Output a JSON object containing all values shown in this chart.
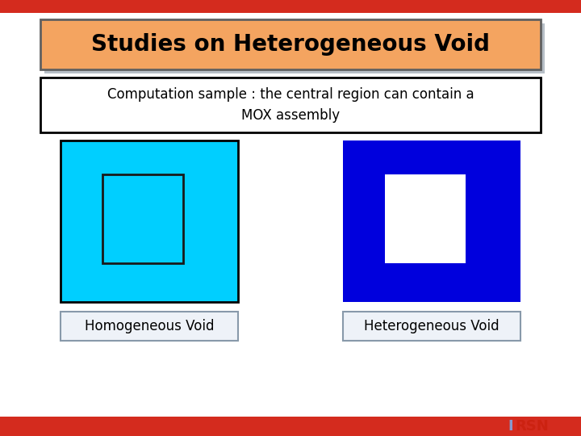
{
  "bg_color": "#ffffff",
  "red_bar_color": "#d42b1e",
  "title_text": "Studies on Heterogeneous Void",
  "title_box_color": "#f4a460",
  "title_shadow_color": "#708090",
  "subtitle_text": "Computation sample : the central region can contain a\nMOX assembly",
  "subtitle_box_edge": "#000000",
  "left_box_color": "#00cfff",
  "left_box_edge": "#000000",
  "left_inner_color": "#00cfff",
  "left_inner_edge": "#1a1a1a",
  "right_box_color": "#0000dd",
  "right_box_edge": "#0000dd",
  "right_inner_color": "#ffffff",
  "label_left": "Homogeneous Void",
  "label_right": "Heterogeneous Void",
  "label_box_edge": "#8899aa",
  "label_box_face": "#eef2f8",
  "irsn_I_color": "#8899cc",
  "irsn_RSN_color": "#cc2211"
}
